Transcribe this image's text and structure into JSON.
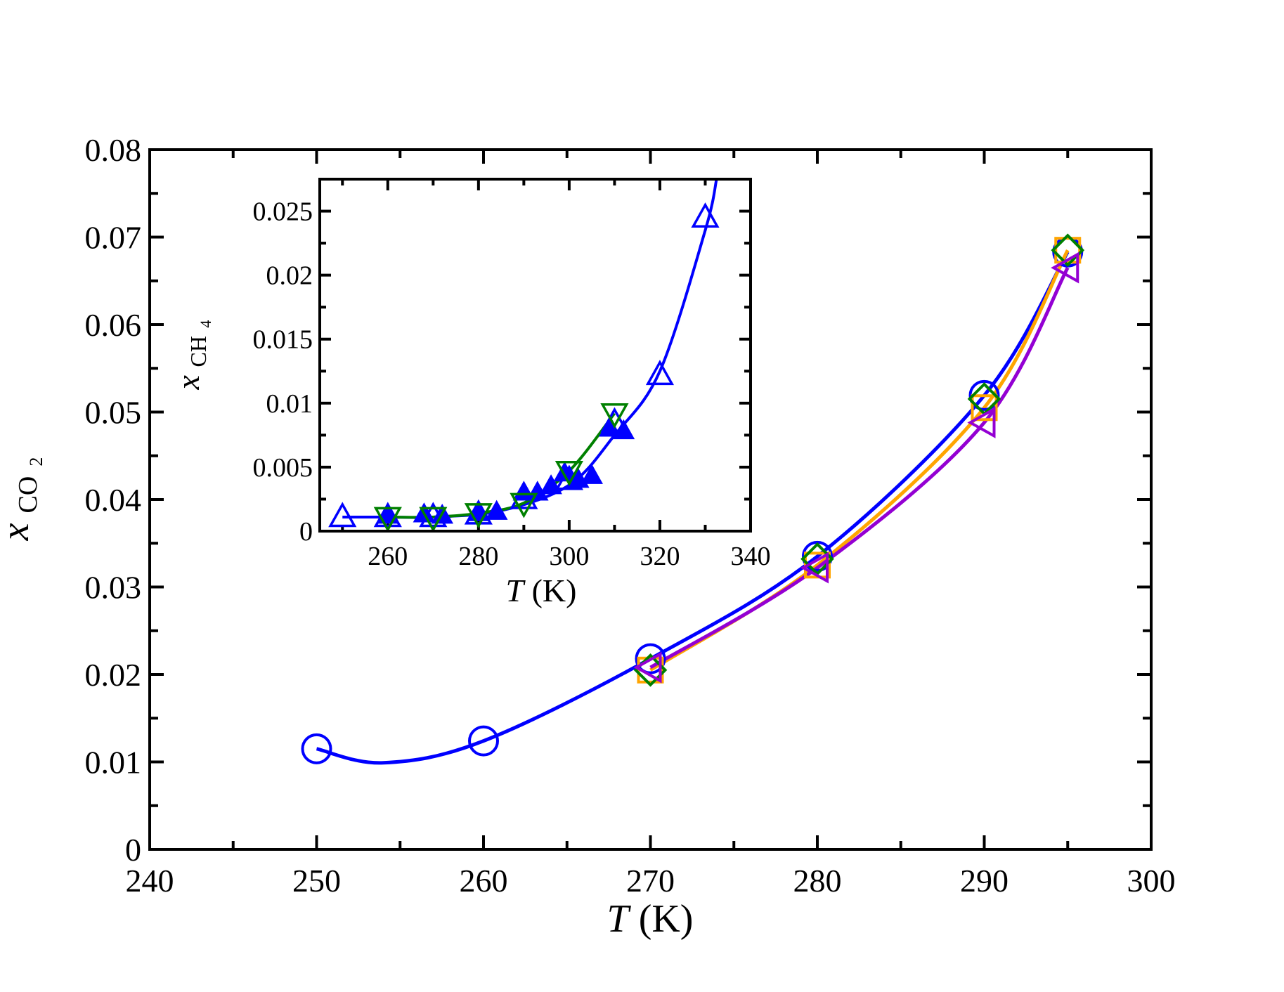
{
  "chart_data": [
    {
      "id": "main",
      "type": "scatter",
      "xlabel": {
        "symbol": "T",
        "unit": "(K)"
      },
      "ylabel": {
        "symbol": "x",
        "subscript": "CO",
        "subsubscript": "2"
      },
      "xlim": [
        240,
        300
      ],
      "ylim": [
        0,
        0.08
      ],
      "xticks": [
        240,
        250,
        260,
        270,
        280,
        290,
        300
      ],
      "xtick_labels": [
        "240",
        "250",
        "260",
        "270",
        "280",
        "290",
        "300"
      ],
      "yticks": [
        0,
        0.01,
        0.02,
        0.03,
        0.04,
        0.05,
        0.06,
        0.07,
        0.08
      ],
      "ytick_labels": [
        "0",
        "0.01",
        "0.02",
        "0.03",
        "0.04",
        "0.05",
        "0.06",
        "0.07",
        "0.08"
      ],
      "series": [
        {
          "name": "circles",
          "marker": "circle",
          "color": "#0000ff",
          "fit_curve": true,
          "x": [
            250,
            260,
            270,
            280,
            290,
            295
          ],
          "y": [
            0.0115,
            0.0124,
            0.0218,
            0.0335,
            0.0519,
            0.0683
          ]
        },
        {
          "name": "squares",
          "marker": "square",
          "color": "#ffa500",
          "fit_curve": true,
          "x": [
            270,
            280,
            290,
            295
          ],
          "y": [
            0.0205,
            0.0325,
            0.0505,
            0.0685
          ]
        },
        {
          "name": "diamonds",
          "marker": "diamond",
          "color": "#008000",
          "fit_curve": false,
          "x": [
            270,
            280,
            290,
            295
          ],
          "y": [
            0.0205,
            0.0332,
            0.0515,
            0.0685
          ]
        },
        {
          "name": "left-triangles",
          "marker": "triangle-left",
          "color": "#9400d3",
          "fit_curve": true,
          "x": [
            270,
            280,
            290,
            295
          ],
          "y": [
            0.0208,
            0.0322,
            0.0488,
            0.0665
          ]
        }
      ]
    },
    {
      "id": "inset",
      "type": "scatter",
      "xlabel": {
        "symbol": "T",
        "unit": "(K)"
      },
      "ylabel": {
        "symbol": "x",
        "subscript": "CH",
        "subsubscript": "4"
      },
      "xlim": [
        245,
        340
      ],
      "ylim": [
        0,
        0.0275
      ],
      "xticks": [
        260,
        280,
        300,
        320,
        340
      ],
      "xtick_labels": [
        "260",
        "280",
        "300",
        "320",
        "340"
      ],
      "yticks": [
        0,
        0.005,
        0.01,
        0.015,
        0.02,
        0.025
      ],
      "ytick_labels": [
        "0",
        "0.005",
        "0.01",
        "0.015",
        "0.02",
        "0.025"
      ],
      "series": [
        {
          "name": "open-up-triangles",
          "marker": "triangle-up",
          "color": "#0000ff",
          "filled": false,
          "fit_curve": true,
          "x": [
            250,
            260,
            270,
            280,
            290,
            300,
            310,
            320,
            330
          ],
          "y": [
            0.0011,
            0.0011,
            0.0011,
            0.0013,
            0.0025,
            0.004,
            0.0085,
            0.0122,
            0.0245
          ]
        },
        {
          "name": "filled-up-triangles",
          "marker": "triangle-up",
          "color": "#0000ff",
          "filled": true,
          "fit_curve": false,
          "x": [
            260,
            268,
            272,
            280,
            284,
            290,
            293,
            296,
            299,
            302,
            305,
            309,
            312
          ],
          "y": [
            0.0012,
            0.0013,
            0.0012,
            0.0014,
            0.0015,
            0.003,
            0.003,
            0.0035,
            0.0045,
            0.004,
            0.0043,
            0.008,
            0.0078
          ]
        },
        {
          "name": "open-down-triangles",
          "marker": "triangle-down",
          "color": "#008000",
          "filled": false,
          "fit_curve": true,
          "x": [
            260,
            270,
            280,
            290,
            300,
            310
          ],
          "y": [
            0.0011,
            0.0011,
            0.0014,
            0.0022,
            0.0047,
            0.0092
          ]
        }
      ]
    }
  ]
}
